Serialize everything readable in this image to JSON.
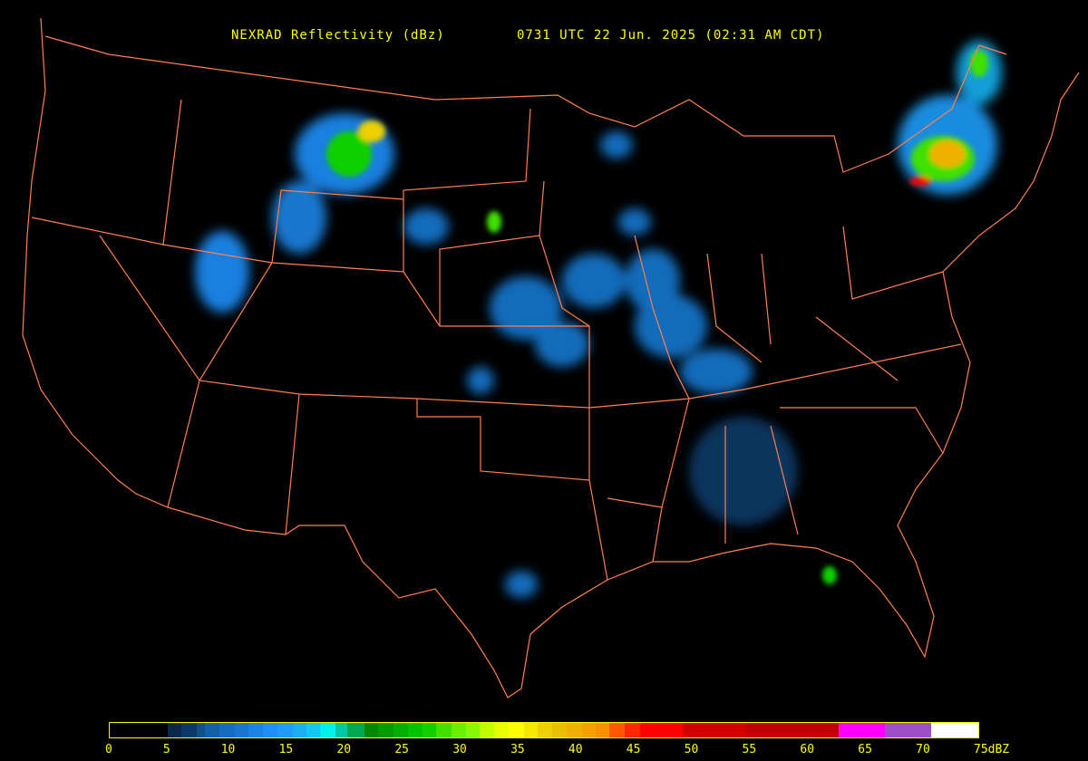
{
  "title": {
    "product": "NEXRAD Reflectivity (dBz)",
    "time": "0731 UTC 22 Jun. 2025 (02:31 AM CDT)"
  },
  "colors": {
    "background": "#000000",
    "borders": "#ff7f50",
    "text": "#ffff00"
  },
  "legend": {
    "unit": "dBZ",
    "range": [
      0,
      75
    ],
    "ticks": [
      "0",
      "5",
      "10",
      "15",
      "20",
      "25",
      "30",
      "35",
      "40",
      "45",
      "50",
      "55",
      "60",
      "65",
      "70",
      "75dBZ"
    ],
    "scale": [
      {
        "from": 0,
        "color": "#000000"
      },
      {
        "from": 5,
        "color": "#0a2848"
      },
      {
        "from": 6.2,
        "color": "#0c3a68"
      },
      {
        "from": 7.5,
        "color": "#10508a"
      },
      {
        "from": 8.2,
        "color": "#1460a8"
      },
      {
        "from": 9.5,
        "color": "#166cc0"
      },
      {
        "from": 10.8,
        "color": "#1878d0"
      },
      {
        "from": 12,
        "color": "#1a84e4"
      },
      {
        "from": 13.2,
        "color": "#1e8ef8"
      },
      {
        "from": 14.5,
        "color": "#1e9cf8"
      },
      {
        "from": 15.8,
        "color": "#18b0f0"
      },
      {
        "from": 17,
        "color": "#10c8f0"
      },
      {
        "from": 18.2,
        "color": "#00f0f0"
      },
      {
        "from": 19.5,
        "color": "#00c8a0"
      },
      {
        "from": 20.5,
        "color": "#00a850"
      },
      {
        "from": 22,
        "color": "#008800"
      },
      {
        "from": 23.2,
        "color": "#009c00"
      },
      {
        "from": 24.5,
        "color": "#00b000"
      },
      {
        "from": 25.8,
        "color": "#00c400"
      },
      {
        "from": 27,
        "color": "#10d000"
      },
      {
        "from": 28.2,
        "color": "#40e000"
      },
      {
        "from": 29.5,
        "color": "#68f000"
      },
      {
        "from": 30.8,
        "color": "#88f800"
      },
      {
        "from": 32,
        "color": "#c0ff00"
      },
      {
        "from": 33.2,
        "color": "#e8ff00"
      },
      {
        "from": 34.5,
        "color": "#ffff00"
      },
      {
        "from": 35.8,
        "color": "#f4e800"
      },
      {
        "from": 37,
        "color": "#ecd000"
      },
      {
        "from": 38.2,
        "color": "#e8c000"
      },
      {
        "from": 39.5,
        "color": "#f0b000"
      },
      {
        "from": 40.8,
        "color": "#f4a000"
      },
      {
        "from": 42,
        "color": "#f89000"
      },
      {
        "from": 43.2,
        "color": "#ff5800"
      },
      {
        "from": 44.5,
        "color": "#ff2800"
      },
      {
        "from": 45.8,
        "color": "#ff0000"
      },
      {
        "from": 49.5,
        "color": "#d00000"
      },
      {
        "from": 55,
        "color": "#c00000"
      },
      {
        "from": 63,
        "color": "#ff00ff"
      },
      {
        "from": 67,
        "color": "#9c50c8"
      },
      {
        "from": 71,
        "color": "#ffffff"
      }
    ]
  }
}
